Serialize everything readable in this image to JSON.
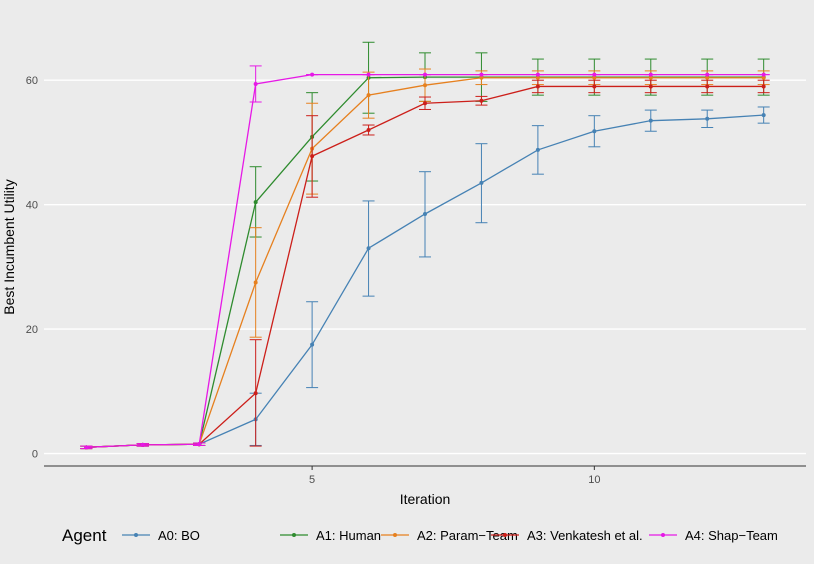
{
  "chart_data": {
    "type": "line",
    "title": "",
    "xlabel": "Iteration",
    "ylabel": "Best Incumbent Utility",
    "xlim": [
      0.25,
      13.75
    ],
    "ylim": [
      -2,
      70
    ],
    "x_ticks": [
      5,
      10
    ],
    "y_ticks": [
      0,
      20,
      40,
      60
    ],
    "grid": true,
    "legend": {
      "title": "Agent",
      "position": "bottom"
    },
    "x": [
      1,
      2,
      3,
      4,
      5,
      6,
      7,
      8,
      9,
      10,
      11,
      12,
      13
    ],
    "series": [
      {
        "name": "A0: BO",
        "color": "#4682b4",
        "values": [
          1,
          1.4,
          1.5,
          5.5,
          17.5,
          33,
          38.5,
          43.5,
          48.8,
          51.8,
          53.5,
          53.8,
          54.4
        ],
        "lower": [
          0.8,
          1.2,
          1.3,
          1.3,
          10.6,
          25.3,
          31.6,
          37.1,
          44.9,
          49.3,
          51.8,
          52.4,
          53.1
        ],
        "upper": [
          1.2,
          1.6,
          1.7,
          9.7,
          24.4,
          40.6,
          45.3,
          49.8,
          52.7,
          54.3,
          55.2,
          55.2,
          55.7
        ]
      },
      {
        "name": "A1: Human",
        "color": "#2e8b2e",
        "values": [
          1,
          1.4,
          1.5,
          40.4,
          50.9,
          60.4,
          60.5,
          60.5,
          60.5,
          60.5,
          60.5,
          60.5,
          60.5
        ],
        "lower": [
          0.8,
          1.2,
          1.3,
          34.8,
          43.8,
          54.7,
          56.6,
          56.6,
          57.6,
          57.6,
          57.6,
          57.6,
          57.6
        ],
        "upper": [
          1.2,
          1.6,
          1.7,
          46.1,
          58.0,
          66.1,
          64.4,
          64.4,
          63.4,
          63.4,
          63.4,
          63.4,
          63.4
        ]
      },
      {
        "name": "A2: Param−Team",
        "color": "#e6801f",
        "values": [
          1,
          1.4,
          1.5,
          27.5,
          49,
          57.6,
          59.2,
          60.4,
          60.4,
          60.4,
          60.4,
          60.4,
          60.4
        ],
        "lower": [
          0.8,
          1.2,
          1.3,
          18.7,
          41.7,
          53.9,
          56.6,
          59.3,
          59.3,
          59.3,
          59.3,
          59.3,
          59.3
        ],
        "upper": [
          1.2,
          1.6,
          1.7,
          36.3,
          56.3,
          61.3,
          61.8,
          61.5,
          61.5,
          61.5,
          61.5,
          61.5,
          61.5
        ]
      },
      {
        "name": "A3: Venkatesh et al.",
        "color": "#cc1f1a",
        "values": [
          1,
          1.4,
          1.5,
          9.7,
          47.8,
          52,
          56.3,
          56.7,
          59,
          59,
          59,
          59,
          59
        ],
        "lower": [
          0.8,
          1.2,
          1.3,
          1.2,
          41.2,
          51.2,
          55.3,
          56.0,
          58.0,
          58.0,
          58.0,
          58.0,
          58.0
        ],
        "upper": [
          1.2,
          1.6,
          1.7,
          18.3,
          54.3,
          52.8,
          57.3,
          57.4,
          60.0,
          60.0,
          60.0,
          60.0,
          60.0
        ]
      },
      {
        "name": "A4: Shap−Team",
        "color": "#e619e6",
        "values": [
          1,
          1.4,
          1.5,
          59.4,
          60.9,
          60.9,
          60.9,
          60.9,
          60.9,
          60.9,
          60.9,
          60.9,
          60.9
        ],
        "lower": [
          0.8,
          1.2,
          1.3,
          56.5,
          60.9,
          60.9,
          60.9,
          60.9,
          60.9,
          60.9,
          60.9,
          60.9,
          60.9
        ],
        "upper": [
          1.2,
          1.6,
          1.7,
          62.3,
          60.9,
          60.9,
          60.9,
          60.9,
          60.9,
          60.9,
          60.9,
          60.9,
          60.9
        ]
      }
    ]
  }
}
